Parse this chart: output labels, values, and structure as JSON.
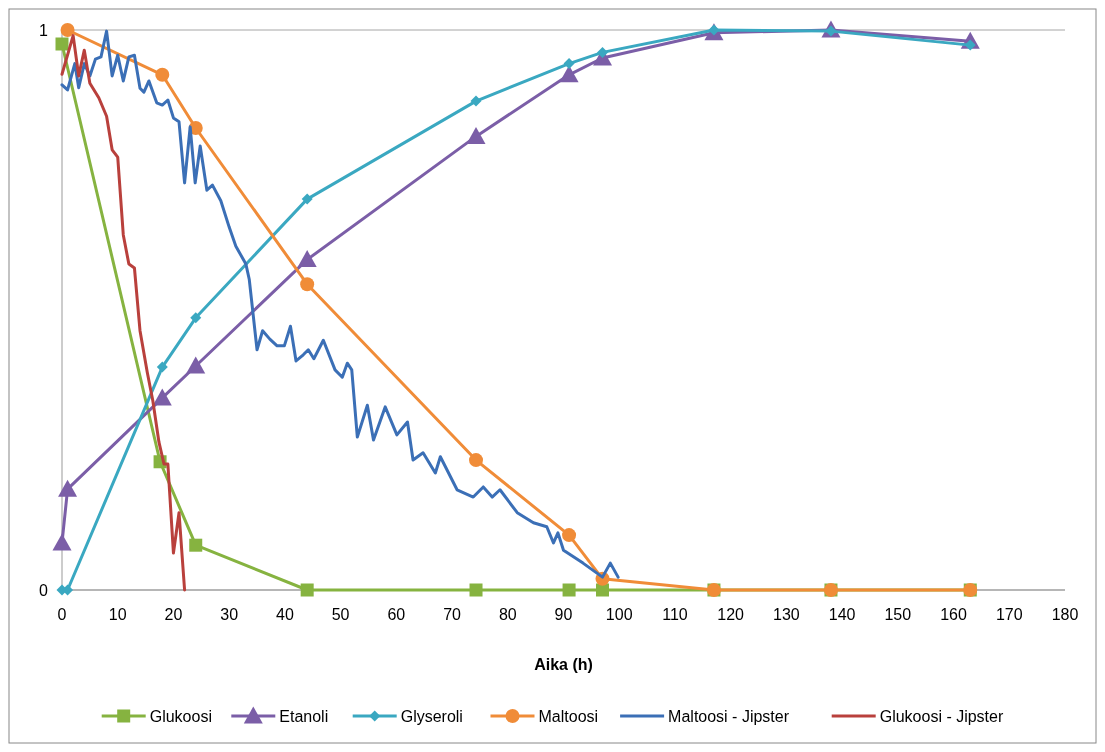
{
  "chart_data": {
    "type": "line",
    "xlabel": "Aika (h)",
    "xlim": [
      0,
      180
    ],
    "xticks": [
      0,
      10,
      20,
      30,
      40,
      50,
      60,
      70,
      80,
      90,
      100,
      110,
      120,
      130,
      140,
      150,
      160,
      170,
      180
    ],
    "ylim": [
      0,
      1
    ],
    "yticks": [
      0,
      1
    ],
    "grid": "y",
    "legend": "bottom",
    "line_style": "solid",
    "series": [
      {
        "name": "Glukoosi",
        "color": "#86b340",
        "marker": "square",
        "x": [
          0,
          17.6,
          24,
          44,
          74.3,
          91,
          97,
          117,
          138,
          163
        ],
        "values": [
          0.975,
          0.229,
          0.08,
          0,
          0,
          0,
          0,
          0,
          0,
          0
        ]
      },
      {
        "name": "Etanoli",
        "color": "#7b5ea7",
        "marker": "triangle",
        "x": [
          0,
          1,
          18,
          24,
          44,
          74.3,
          91,
          97,
          117,
          138,
          163
        ],
        "values": [
          0.084,
          0.18,
          0.343,
          0.4,
          0.59,
          0.81,
          0.92,
          0.95,
          0.995,
          1,
          0.98
        ]
      },
      {
        "name": "Glyseroli",
        "color": "#3aa8c1",
        "marker": "diamond",
        "x": [
          0,
          1,
          18,
          24,
          44,
          74.3,
          91,
          97,
          117,
          138,
          163
        ],
        "values": [
          0,
          0,
          0.398,
          0.486,
          0.698,
          0.873,
          0.94,
          0.96,
          1,
          0.998,
          0.973
        ]
      },
      {
        "name": "Maltoosi",
        "color": "#f08c38",
        "marker": "circle",
        "x": [
          1,
          18,
          24,
          44,
          74.3,
          91,
          97,
          117,
          138,
          163
        ],
        "values": [
          1,
          0.92,
          0.825,
          0.546,
          0.232,
          0.098,
          0.02,
          0,
          0,
          0
        ]
      },
      {
        "name": "Maltoosi - Jipster",
        "color": "#3b6fb6",
        "marker": "none",
        "x": [
          0,
          1,
          2.3,
          3,
          4,
          5,
          6,
          7,
          8,
          9,
          10,
          11,
          12,
          13,
          14,
          14.7,
          15.6,
          17,
          18,
          19,
          20,
          21,
          22,
          23,
          23.9,
          24.8,
          26,
          27,
          28.5,
          30,
          31.2,
          33,
          33.6,
          35,
          36,
          37.3,
          38.6,
          39.9,
          41,
          42,
          43.3,
          44.2,
          45.2,
          46.9,
          49,
          50.3,
          51.2,
          52,
          53,
          54.8,
          55.9,
          58,
          60.1,
          62,
          63,
          64.8,
          67,
          67.9,
          70.9,
          73.8,
          75.6,
          77.2,
          78.6,
          81.7,
          84.6,
          87,
          88.2,
          89,
          90,
          93.5,
          97,
          98.4,
          99.8
        ],
        "values": [
          0.902,
          0.893,
          0.94,
          0.897,
          0.94,
          0.918,
          0.948,
          0.952,
          0.998,
          0.918,
          0.955,
          0.909,
          0.952,
          0.955,
          0.896,
          0.889,
          0.909,
          0.87,
          0.866,
          0.875,
          0.843,
          0.836,
          0.727,
          0.827,
          0.727,
          0.793,
          0.714,
          0.723,
          0.695,
          0.648,
          0.614,
          0.582,
          0.555,
          0.429,
          0.463,
          0.448,
          0.436,
          0.436,
          0.471,
          0.409,
          0.42,
          0.429,
          0.413,
          0.446,
          0.393,
          0.38,
          0.405,
          0.393,
          0.273,
          0.33,
          0.268,
          0.327,
          0.277,
          0.3,
          0.232,
          0.245,
          0.209,
          0.238,
          0.179,
          0.166,
          0.184,
          0.166,
          0.179,
          0.138,
          0.12,
          0.113,
          0.084,
          0.102,
          0.071,
          0.048,
          0.023,
          0.048,
          0.023
        ]
      },
      {
        "name": "Glukoosi - Jipster",
        "color": "#b9403c",
        "marker": "none",
        "x": [
          0,
          2,
          3,
          4,
          5,
          6.6,
          8,
          9,
          10,
          11,
          12,
          13,
          14,
          15.3,
          16.3,
          17.4,
          18.3,
          19,
          20,
          21,
          22
        ],
        "values": [
          0.921,
          0.99,
          0.918,
          0.964,
          0.905,
          0.879,
          0.846,
          0.786,
          0.773,
          0.634,
          0.582,
          0.575,
          0.463,
          0.389,
          0.338,
          0.264,
          0.225,
          0.225,
          0.066,
          0.138,
          0
        ]
      }
    ]
  }
}
